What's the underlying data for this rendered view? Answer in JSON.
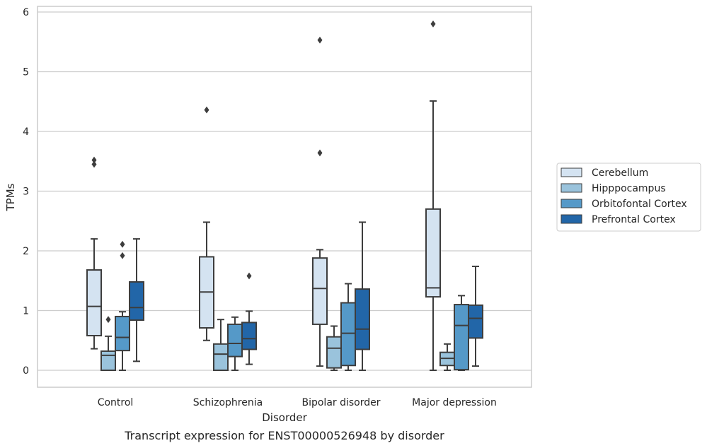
{
  "chart_data": {
    "type": "box",
    "caption": "Transcript expression for ENST00000526948 by disorder",
    "xlabel": "Disorder",
    "ylabel": "TPMs",
    "ylim": [
      -0.28,
      6.1
    ],
    "yticks": [
      0,
      1,
      2,
      3,
      4,
      5,
      6
    ],
    "ytick_labels": [
      "0",
      "1",
      "2",
      "3",
      "4",
      "5",
      "6"
    ],
    "grid": "horizontal",
    "legend_position": "right",
    "categories": [
      "Control",
      "Schizophrenia",
      "Bipolar disorder",
      "Major depression"
    ],
    "series": [
      {
        "name": "Cerebellum",
        "color": "#d4e3f1",
        "boxes": [
          {
            "whisker_low": 0.36,
            "q1": 0.58,
            "median": 1.07,
            "q3": 1.68,
            "whisker_high": 2.2,
            "outliers": [
              3.45,
              3.52
            ]
          },
          {
            "whisker_low": 0.5,
            "q1": 0.71,
            "median": 1.31,
            "q3": 1.9,
            "whisker_high": 2.48,
            "outliers": [
              4.36
            ]
          },
          {
            "whisker_low": 0.07,
            "q1": 0.77,
            "median": 1.37,
            "q3": 1.88,
            "whisker_high": 2.02,
            "outliers": [
              3.64,
              5.53
            ]
          },
          {
            "whisker_low": 0.0,
            "q1": 1.23,
            "median": 1.38,
            "q3": 2.7,
            "whisker_high": 4.51,
            "outliers": [
              5.8
            ]
          }
        ]
      },
      {
        "name": "Hipppocampus",
        "color": "#9ac3dc",
        "boxes": [
          {
            "whisker_low": 0.0,
            "q1": 0.0,
            "median": 0.25,
            "q3": 0.32,
            "whisker_high": 0.57,
            "outliers": [
              0.85
            ]
          },
          {
            "whisker_low": 0.0,
            "q1": 0.0,
            "median": 0.27,
            "q3": 0.44,
            "whisker_high": 0.85,
            "outliers": []
          },
          {
            "whisker_low": 0.0,
            "q1": 0.04,
            "median": 0.37,
            "q3": 0.56,
            "whisker_high": 0.74,
            "outliers": []
          },
          {
            "whisker_low": 0.0,
            "q1": 0.08,
            "median": 0.2,
            "q3": 0.3,
            "whisker_high": 0.44,
            "outliers": []
          }
        ]
      },
      {
        "name": "Orbitofontal Cortex",
        "color": "#5599c8",
        "boxes": [
          {
            "whisker_low": 0.0,
            "q1": 0.33,
            "median": 0.55,
            "q3": 0.9,
            "whisker_high": 0.98,
            "outliers": [
              1.92,
              2.11
            ]
          },
          {
            "whisker_low": 0.0,
            "q1": 0.23,
            "median": 0.45,
            "q3": 0.77,
            "whisker_high": 0.89,
            "outliers": []
          },
          {
            "whisker_low": 0.0,
            "q1": 0.08,
            "median": 0.62,
            "q3": 1.13,
            "whisker_high": 1.45,
            "outliers": []
          },
          {
            "whisker_low": 0.0,
            "q1": 0.01,
            "median": 0.75,
            "q3": 1.1,
            "whisker_high": 1.25,
            "outliers": []
          }
        ]
      },
      {
        "name": "Prefrontal Cortex",
        "color": "#2266a8",
        "boxes": [
          {
            "whisker_low": 0.15,
            "q1": 0.84,
            "median": 1.05,
            "q3": 1.48,
            "whisker_high": 2.2,
            "outliers": []
          },
          {
            "whisker_low": 0.1,
            "q1": 0.35,
            "median": 0.53,
            "q3": 0.8,
            "whisker_high": 0.99,
            "outliers": [
              1.58
            ]
          },
          {
            "whisker_low": 0.0,
            "q1": 0.35,
            "median": 0.69,
            "q3": 1.36,
            "whisker_high": 2.48,
            "outliers": []
          },
          {
            "whisker_low": 0.07,
            "q1": 0.54,
            "median": 0.87,
            "q3": 1.09,
            "whisker_high": 1.74,
            "outliers": []
          }
        ]
      }
    ]
  }
}
